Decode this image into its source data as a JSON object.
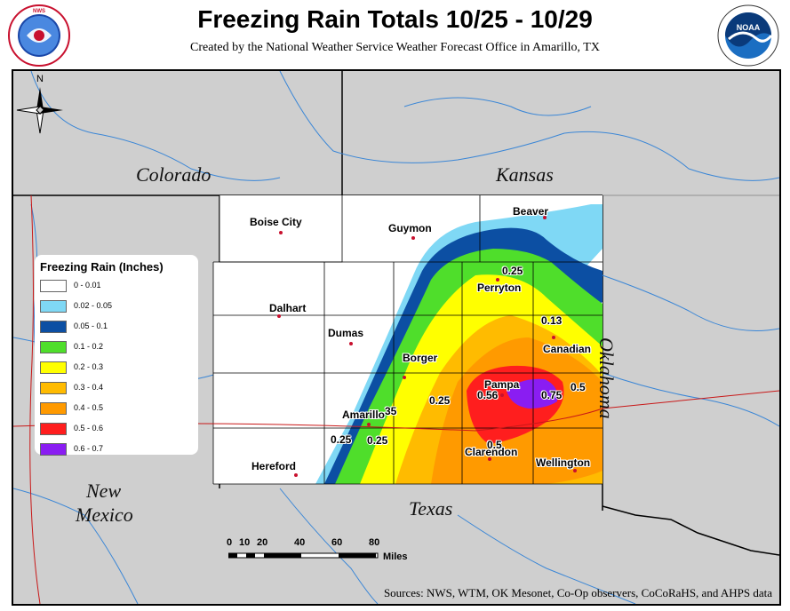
{
  "title": "Freezing Rain Totals 10/25 - 10/29",
  "subtitle": "Created by the National Weather Service Weather Forecast Office in Amarillo, TX",
  "logos": {
    "left": {
      "text": "NATIONAL WEATHER SERVICE",
      "icon": "nws-logo"
    },
    "right": {
      "text": "NOAA",
      "icon": "noaa-logo"
    }
  },
  "states": {
    "colorado": "Colorado",
    "kansas": "Kansas",
    "oklahoma": "Oklahoma",
    "new_mexico_1": "New",
    "new_mexico_2": "Mexico",
    "texas": "Texas"
  },
  "cities": {
    "boise_city": "Boise City",
    "guymon": "Guymon",
    "beaver": "Beaver",
    "perryton": "Perryton",
    "dalhart": "Dalhart",
    "dumas": "Dumas",
    "canadian": "Canadian",
    "borger": "Borger",
    "pampa": "Pampa",
    "amarillo": "Amarillo",
    "hereford": "Hereford",
    "clarendon": "Clarendon",
    "wellington": "Wellington"
  },
  "observations": {
    "v1": "0.25",
    "v2": "0.13",
    "v3": "0.56",
    "v4": "0.75",
    "v5": "0.5",
    "v6": "0.25",
    "v7": "35",
    "v8": "0.25",
    "v9": "0.25",
    "v10": "0.5"
  },
  "legend": {
    "title": "Freezing Rain (Inches)",
    "items": [
      {
        "label": "0 - 0.01",
        "color": "#ffffff"
      },
      {
        "label": "0.02 - 0.05",
        "color": "#7fd8f5"
      },
      {
        "label": "0.05 - 0.1",
        "color": "#0c4fa3"
      },
      {
        "label": "0.1 - 0.2",
        "color": "#4fde2b"
      },
      {
        "label": "0.2 - 0.3",
        "color": "#ffff00"
      },
      {
        "label": "0.3 - 0.4",
        "color": "#ffbb00"
      },
      {
        "label": "0.4 - 0.5",
        "color": "#ff9a00"
      },
      {
        "label": "0.5 - 0.6",
        "color": "#ff1e1e"
      },
      {
        "label": "0.6 - 0.7",
        "color": "#8a1df2"
      }
    ]
  },
  "scale": {
    "ticks": [
      "0",
      "10",
      "20",
      "40",
      "60",
      "80"
    ],
    "unit": "Miles"
  },
  "north": "N",
  "sources": "Sources:  NWS, WTM, OK Mesonet, Co-Op observers, CoCoRaHS, and AHPS data"
}
